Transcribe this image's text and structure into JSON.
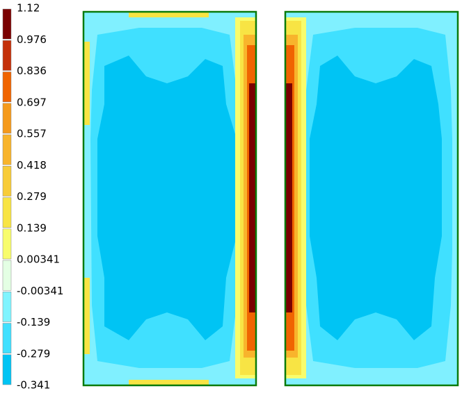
{
  "legend": {
    "labels": [
      "1.12",
      "0.976",
      "0.836",
      "0.697",
      "0.557",
      "0.418",
      "0.279",
      "0.139",
      "0.00341",
      "-0.00341",
      "-0.139",
      "-0.279",
      "-0.341"
    ],
    "colors": [
      "#7a0000",
      "#c4300a",
      "#f06400",
      "#f59a1c",
      "#f8b42c",
      "#f8cc38",
      "#f8e444",
      "#f8fc6c",
      "#e4ffe4",
      "#80f4ff",
      "#40e0ff",
      "#00c4f4"
    ]
  }
}
